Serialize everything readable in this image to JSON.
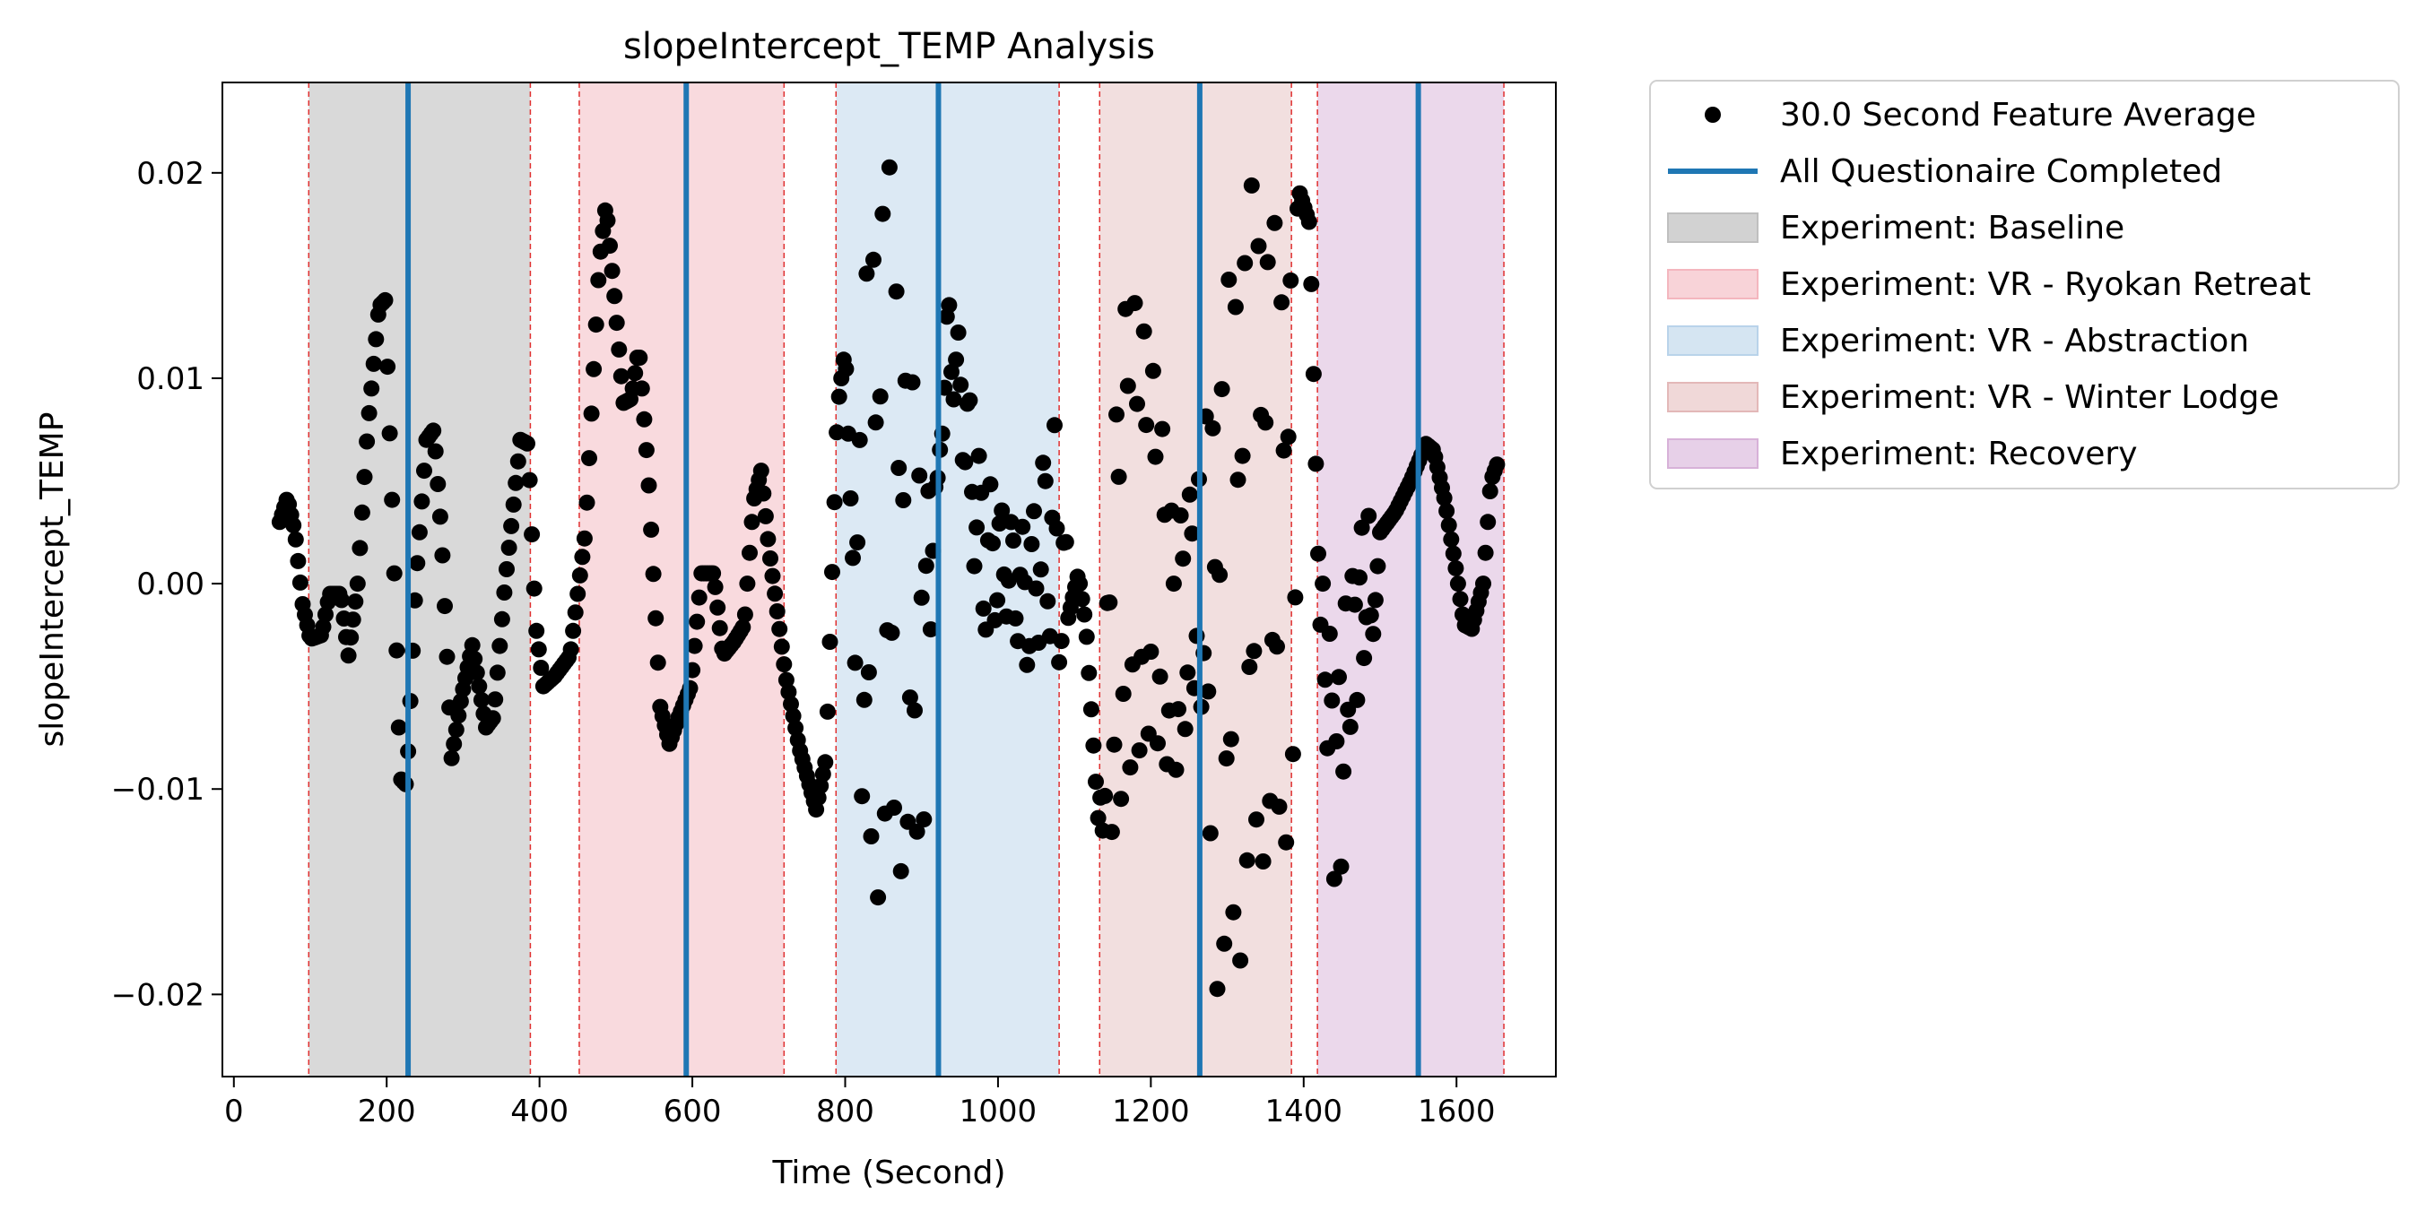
{
  "chart_data": {
    "type": "scatter",
    "title": "slopeIntercept_TEMP Analysis",
    "xlabel": "Time (Second)",
    "ylabel": "slopeIntercept_TEMP",
    "xlim": [
      -15,
      1730
    ],
    "ylim": [
      -0.024,
      0.0244
    ],
    "xticks": [
      0,
      200,
      400,
      600,
      800,
      1000,
      1200,
      1400,
      1600
    ],
    "xtick_labels": [
      "0",
      "200",
      "400",
      "600",
      "800",
      "1000",
      "1200",
      "1400",
      "1600"
    ],
    "yticks": [
      0.02,
      0.01,
      0.0,
      -0.01,
      -0.02
    ],
    "ytick_labels": [
      "0.02",
      "0.01",
      "0.00",
      "−0.01",
      "−0.02"
    ],
    "grid": false,
    "legend_position": "outside-upper-right",
    "series": [
      {
        "name": "30.0 Second Feature Average",
        "marker": "circle",
        "color": "#000000",
        "x_start": 60,
        "x_step": 3,
        "keypoints": [
          [
            60,
            0.003
          ],
          [
            70,
            0.0042
          ],
          [
            80,
            0.0025
          ],
          [
            90,
            -0.001
          ],
          [
            100,
            -0.0027
          ],
          [
            115,
            -0.0025
          ],
          [
            125,
            -0.0005
          ],
          [
            140,
            -0.0005
          ],
          [
            150,
            -0.0035
          ],
          [
            162,
            0.0
          ],
          [
            175,
            0.0075
          ],
          [
            190,
            0.0135
          ],
          [
            198,
            0.0138
          ],
          [
            208,
            0.003
          ],
          [
            218,
            -0.0095
          ],
          [
            226,
            -0.0098
          ],
          [
            238,
            0.0
          ],
          [
            252,
            0.007
          ],
          [
            262,
            0.0075
          ],
          [
            272,
            0.0022
          ],
          [
            285,
            -0.0085
          ],
          [
            298,
            -0.0055
          ],
          [
            312,
            -0.003
          ],
          [
            330,
            -0.007
          ],
          [
            340,
            -0.0065
          ],
          [
            355,
            0.0
          ],
          [
            375,
            0.007
          ],
          [
            385,
            0.0068
          ],
          [
            395,
            -0.002
          ],
          [
            405,
            -0.005
          ],
          [
            420,
            -0.0045
          ],
          [
            440,
            -0.0035
          ],
          [
            460,
            0.0025
          ],
          [
            478,
            0.0155
          ],
          [
            487,
            0.0185
          ],
          [
            498,
            0.014
          ],
          [
            510,
            0.0088
          ],
          [
            520,
            0.009
          ],
          [
            530,
            0.0115
          ],
          [
            542,
            0.0055
          ],
          [
            558,
            -0.006
          ],
          [
            570,
            -0.0078
          ],
          [
            582,
            -0.0065
          ],
          [
            598,
            -0.005
          ],
          [
            612,
            0.0005
          ],
          [
            628,
            0.0005
          ],
          [
            640,
            -0.0035
          ],
          [
            655,
            -0.0028
          ],
          [
            668,
            -0.002
          ],
          [
            680,
            0.004
          ],
          [
            690,
            0.0055
          ],
          [
            700,
            0.0018
          ],
          [
            722,
            -0.0045
          ],
          [
            740,
            -0.008
          ],
          [
            762,
            -0.011
          ],
          [
            775,
            -0.0085
          ],
          [
            790,
            0.0085
          ],
          [
            800,
            0.0115
          ],
          [
            810,
            0.001
          ]
        ],
        "oscillation_segments": [
          {
            "x": [
              808,
              920
            ],
            "period": 10,
            "upper": [
              [
                808,
                0.001
              ],
              [
                830,
                0.0165
              ],
              [
                845,
                0.022
              ],
              [
                860,
                0.02
              ],
              [
                880,
                0.012
              ],
              [
                900,
                0.0065
              ],
              [
                920,
                0.0045
              ]
            ],
            "lower": [
              [
                808,
                0.001
              ],
              [
                825,
                -0.0155
              ],
              [
                840,
                -0.0155
              ],
              [
                860,
                -0.014
              ],
              [
                880,
                -0.014
              ],
              [
                900,
                -0.0143
              ],
              [
                920,
                0.0045
              ]
            ]
          },
          {
            "x": [
              1132,
              1262
            ],
            "period": 12,
            "upper": [
              [
                1132,
                -0.012
              ],
              [
                1150,
                0.0075
              ],
              [
                1170,
                0.0165
              ],
              [
                1190,
                0.014
              ],
              [
                1210,
                0.0105
              ],
              [
                1230,
                0.0035
              ],
              [
                1262,
                0.006
              ]
            ],
            "lower": [
              [
                1132,
                -0.012
              ],
              [
                1150,
                -0.0135
              ],
              [
                1170,
                -0.011
              ],
              [
                1200,
                -0.0085
              ],
              [
                1230,
                -0.0105
              ],
              [
                1262,
                -0.005
              ]
            ]
          },
          {
            "x": [
              1262,
              1395
            ],
            "period": 10,
            "upper": [
              [
                1262,
                0.006
              ],
              [
                1290,
                0.012
              ],
              [
                1320,
                0.019
              ],
              [
                1345,
                0.0198
              ],
              [
                1370,
                0.0165
              ],
              [
                1395,
                0.0185
              ]
            ],
            "lower": [
              [
                1262,
                -0.005
              ],
              [
                1290,
                -0.0215
              ],
              [
                1320,
                -0.018
              ],
              [
                1345,
                -0.0135
              ],
              [
                1370,
                -0.0138
              ],
              [
                1395,
                -0.0095
              ]
            ]
          },
          {
            "x": [
              1425,
              1490
            ],
            "period": 10,
            "upper": [
              [
                1425,
                0.0
              ],
              [
                1445,
                -0.0035
              ],
              [
                1460,
                0.0003
              ],
              [
                1475,
                0.0035
              ],
              [
                1490,
                0.0032
              ]
            ],
            "lower": [
              [
                1425,
                -0.005
              ],
              [
                1445,
                -0.0175
              ],
              [
                1460,
                -0.008
              ],
              [
                1475,
                -0.0045
              ],
              [
                1490,
                -0.004
              ]
            ]
          }
        ],
        "keypoints_after": [
          [
            1395,
            0.019
          ],
          [
            1408,
            0.0175
          ],
          [
            1420,
            0.0
          ],
          [
            1425,
            -0.005
          ],
          [
            1490,
            -0.003
          ],
          [
            1500,
            0.0025
          ],
          [
            1520,
            0.0035
          ],
          [
            1540,
            0.005
          ],
          [
            1560,
            0.0068
          ],
          [
            1570,
            0.0065
          ],
          [
            1585,
            0.004
          ],
          [
            1598,
            0.001
          ],
          [
            1610,
            -0.002
          ],
          [
            1620,
            -0.0022
          ],
          [
            1635,
            0.0
          ],
          [
            1645,
            0.005
          ],
          [
            1655,
            0.006
          ]
        ],
        "mid_oscillation": {
          "x": [
            920,
            1090
          ],
          "period": 14,
          "upper": [
            [
              920,
              0.0045
            ],
            [
              935,
              0.0145
            ],
            [
              955,
              0.011
            ],
            [
              980,
              0.0055
            ],
            [
              1010,
              0.0035
            ],
            [
              1040,
              0.0025
            ],
            [
              1060,
              0.0065
            ],
            [
              1075,
              0.0078
            ],
            [
              1090,
              0.002
            ]
          ],
          "lower": [
            [
              920,
              0.0045
            ],
            [
              935,
              0.0105
            ],
            [
              955,
              0.0055
            ],
            [
              980,
              -0.0028
            ],
            [
              1010,
              -0.0015
            ],
            [
              1040,
              -0.0045
            ],
            [
              1060,
              -0.002
            ],
            [
              1075,
              -0.004
            ],
            [
              1090,
              -0.005
            ]
          ]
        },
        "bridge": [
          [
            1090,
            -0.002
          ],
          [
            1105,
            0.0005
          ],
          [
            1115,
            -0.002
          ],
          [
            1132,
            -0.012
          ]
        ]
      },
      {
        "name": "All Questionaire Completed",
        "type": "vline",
        "color": "#1f77b4",
        "x": [
          228,
          592,
          922,
          1264,
          1550
        ]
      }
    ],
    "regions": [
      {
        "name": "Experiment: Baseline",
        "color": "#bfbfbf",
        "opacity": 0.6,
        "spans": [
          [
            98,
            388
          ]
        ]
      },
      {
        "name": "Experiment: VR - Ryokan Retreat",
        "color": "#f4b6be",
        "opacity": 0.5,
        "spans": [
          [
            452,
            720
          ]
        ]
      },
      {
        "name": "Experiment: VR - Abstraction",
        "color": "#b9d3ea",
        "opacity": 0.5,
        "spans": [
          [
            788,
            1080
          ]
        ]
      },
      {
        "name": "Experiment: VR - Winter Lodge",
        "color": "#e3b8b8",
        "opacity": 0.45,
        "spans": [
          [
            1133,
            1384
          ]
        ]
      },
      {
        "name": "Experiment: Recovery",
        "color": "#d7b1d8",
        "opacity": 0.5,
        "spans": [
          [
            1418,
            1662
          ]
        ]
      }
    ],
    "region_boundaries": [
      98,
      388,
      452,
      720,
      788,
      1080,
      1133,
      1384,
      1418,
      1662
    ],
    "boundary_color": "#e03030"
  }
}
